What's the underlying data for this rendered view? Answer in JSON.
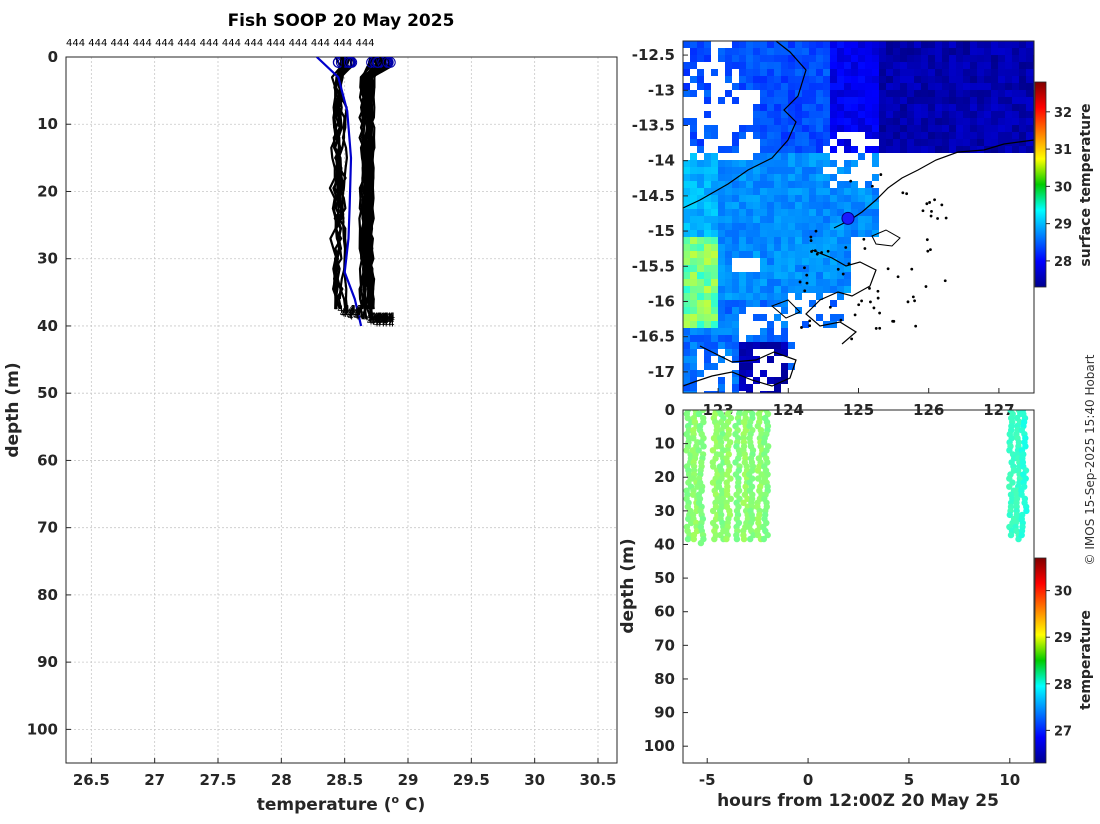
{
  "chart_data": [
    {
      "type": "line",
      "title": "Fish SOOP 20 May 2025",
      "xlabel": "temperature (",
      "xlabel_sup": "o",
      "xlabel_tail": " C)",
      "ylabel": "depth (m)",
      "xlim": [
        26.3,
        30.65
      ],
      "ylim": [
        0,
        105
      ],
      "xticks": [
        "26.5",
        "27",
        "27.5",
        "28",
        "28.5",
        "29",
        "29.5",
        "30",
        "30.5"
      ],
      "yticks": [
        "0",
        "10",
        "20",
        "30",
        "40",
        "50",
        "60",
        "70",
        "80",
        "90",
        "100"
      ],
      "top_label": "444 444 444 444 444 444 444 444 444 444 444 444 444 444",
      "end_label": "444",
      "profile_group_a": {
        "count": 10,
        "surface_temp": 28.48,
        "mean_temp": 28.45,
        "max_depth": 38.5
      },
      "profile_group_b": {
        "count": 22,
        "surface_temp": 28.75,
        "mean_temp": 28.68,
        "max_depth": 39.5
      },
      "reference_profile": {
        "color": "#0000cc",
        "points": [
          [
            28.28,
            0
          ],
          [
            28.45,
            3
          ],
          [
            28.52,
            8
          ],
          [
            28.55,
            15
          ],
          [
            28.54,
            22
          ],
          [
            28.53,
            27
          ],
          [
            28.5,
            32
          ],
          [
            28.58,
            36
          ],
          [
            28.63,
            40
          ]
        ]
      },
      "colors": {
        "profiles": "#000000",
        "reference": "#0000cc"
      }
    },
    {
      "type": "heatmap",
      "name": "surface temperature map",
      "yticks": [
        "-12.5",
        "-13",
        "-13.5",
        "-14",
        "-14.5",
        "-15",
        "-15.5",
        "-16",
        "-16.5",
        "-17"
      ],
      "xticks": [
        "123",
        "124",
        "125",
        "126",
        "127"
      ],
      "ylim": [
        -17.3,
        -12.3
      ],
      "xlim": [
        122.5,
        127.5
      ],
      "colorbar_label": "surface temperature",
      "colorbar_ticks": [
        "28",
        "29",
        "30",
        "31",
        "32"
      ],
      "colorbar_range": [
        27.3,
        32.8
      ],
      "ship_position": {
        "lon": 124.85,
        "lat": -14.82
      }
    },
    {
      "type": "scatter",
      "name": "depth time section",
      "xlabel": "hours from 12:00Z 20 May 25",
      "ylabel": "depth (m)",
      "xlim": [
        -6.2,
        11.2
      ],
      "ylim": [
        0,
        105
      ],
      "xticks": [
        "-5",
        "0",
        "5",
        "10"
      ],
      "yticks": [
        "0",
        "10",
        "20",
        "30",
        "40",
        "50",
        "60",
        "70",
        "80",
        "90",
        "100"
      ],
      "colorbar_label": "temperature",
      "colorbar_ticks": [
        "27",
        "28",
        "29",
        "30"
      ],
      "colorbar_range": [
        26.3,
        30.7
      ],
      "casts": [
        {
          "hour": -5.9,
          "max_depth": 38.5,
          "temp": 28.5
        },
        {
          "hour": -5.6,
          "max_depth": 39.5,
          "temp": 28.6
        },
        {
          "hour": -5.3,
          "max_depth": 40,
          "temp": 28.5
        },
        {
          "hour": -4.6,
          "max_depth": 38.5,
          "temp": 28.6
        },
        {
          "hour": -4.3,
          "max_depth": 39,
          "temp": 28.5
        },
        {
          "hour": -3.95,
          "max_depth": 39,
          "temp": 28.6
        },
        {
          "hour": -3.5,
          "max_depth": 38.5,
          "temp": 28.5
        },
        {
          "hour": -3.1,
          "max_depth": 39,
          "temp": 28.6
        },
        {
          "hour": -2.8,
          "max_depth": 39,
          "temp": 28.5
        },
        {
          "hour": -2.4,
          "max_depth": 38.5,
          "temp": 28.6
        },
        {
          "hour": -2.1,
          "max_depth": 38.5,
          "temp": 28.5
        },
        {
          "hour": 10.1,
          "max_depth": 38,
          "temp": 28.2
        },
        {
          "hour": 10.4,
          "max_depth": 38.5,
          "temp": 28.2
        },
        {
          "hour": 10.7,
          "max_depth": 38,
          "temp": 28.1
        }
      ]
    }
  ],
  "credit": "© IMOS 15-Sep-2025 15:40 Hobart"
}
